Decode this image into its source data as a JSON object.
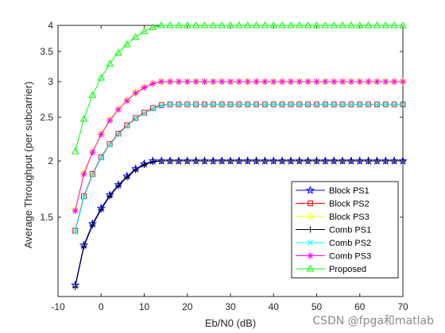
{
  "chart_data": {
    "type": "line",
    "title": "",
    "xlabel": "Eb/N0 (dB)",
    "ylabel": "Average Throughput (per subcarrier)",
    "xlim": [
      -10,
      70
    ],
    "ylim": [
      1.0,
      4.0
    ],
    "yscale": "log",
    "xticks": [
      -10,
      0,
      10,
      20,
      30,
      40,
      50,
      60,
      70
    ],
    "yticks": [
      1.5,
      2,
      2.5,
      3,
      3.5,
      4
    ],
    "ytick_labels": [
      "1.5",
      "2",
      "2.5",
      "3",
      "3.5",
      "4"
    ],
    "grid": false,
    "legend_position": "bottom-right",
    "x": [
      -6,
      -4,
      -2,
      0,
      2,
      4,
      6,
      8,
      10,
      12,
      14,
      16,
      18,
      20,
      22,
      24,
      26,
      28,
      30,
      32,
      34,
      36,
      38,
      40,
      42,
      44,
      46,
      48,
      50,
      52,
      54,
      56,
      58,
      60,
      62,
      64,
      66,
      68,
      70
    ],
    "series": [
      {
        "name": "Block PS1",
        "color": "#0000ff",
        "marker": "star",
        "values": [
          1.06,
          1.3,
          1.45,
          1.57,
          1.68,
          1.77,
          1.85,
          1.92,
          1.97,
          2.0,
          2.0,
          2.0,
          2.0,
          2.0,
          2.0,
          2.0,
          2.0,
          2.0,
          2.0,
          2.0,
          2.0,
          2.0,
          2.0,
          2.0,
          2.0,
          2.0,
          2.0,
          2.0,
          2.0,
          2.0,
          2.0,
          2.0,
          2.0,
          2.0,
          2.0,
          2.0,
          2.0,
          2.0,
          2.0
        ]
      },
      {
        "name": "Block PS2",
        "color": "#ff0000",
        "marker": "square",
        "values": [
          1.4,
          1.67,
          1.87,
          2.04,
          2.18,
          2.3,
          2.4,
          2.49,
          2.56,
          2.62,
          2.66,
          2.67,
          2.67,
          2.67,
          2.67,
          2.67,
          2.67,
          2.67,
          2.67,
          2.67,
          2.67,
          2.67,
          2.67,
          2.67,
          2.67,
          2.67,
          2.67,
          2.67,
          2.67,
          2.67,
          2.67,
          2.67,
          2.67,
          2.67,
          2.67,
          2.67,
          2.67,
          2.67,
          2.67
        ]
      },
      {
        "name": "Block PS3",
        "color": "#ffff00",
        "marker": "diamond",
        "values": [
          1.56,
          1.88,
          2.1,
          2.3,
          2.47,
          2.61,
          2.73,
          2.84,
          2.92,
          2.98,
          3.0,
          3.0,
          3.0,
          3.0,
          3.0,
          3.0,
          3.0,
          3.0,
          3.0,
          3.0,
          3.0,
          3.0,
          3.0,
          3.0,
          3.0,
          3.0,
          3.0,
          3.0,
          3.0,
          3.0,
          3.0,
          3.0,
          3.0,
          3.0,
          3.0,
          3.0,
          3.0,
          3.0,
          3.0
        ]
      },
      {
        "name": "Comb PS1",
        "color": "#000000",
        "marker": "plus",
        "values": [
          1.05,
          1.29,
          1.44,
          1.56,
          1.67,
          1.76,
          1.84,
          1.91,
          1.96,
          1.99,
          2.0,
          2.0,
          2.0,
          2.0,
          2.0,
          2.0,
          2.0,
          2.0,
          2.0,
          2.0,
          2.0,
          2.0,
          2.0,
          2.0,
          2.0,
          2.0,
          2.0,
          2.0,
          2.0,
          2.0,
          2.0,
          2.0,
          2.0,
          2.0,
          2.0,
          2.0,
          2.0,
          2.0,
          2.0
        ]
      },
      {
        "name": "Comb PS2",
        "color": "#00ffff",
        "marker": "x",
        "values": [
          1.39,
          1.66,
          1.86,
          2.03,
          2.17,
          2.29,
          2.39,
          2.48,
          2.55,
          2.61,
          2.65,
          2.67,
          2.67,
          2.67,
          2.67,
          2.67,
          2.67,
          2.67,
          2.67,
          2.67,
          2.67,
          2.67,
          2.67,
          2.67,
          2.67,
          2.67,
          2.67,
          2.67,
          2.67,
          2.67,
          2.67,
          2.67,
          2.67,
          2.67,
          2.67,
          2.67,
          2.67,
          2.67,
          2.67
        ]
      },
      {
        "name": "Comb PS3",
        "color": "#ff00ff",
        "marker": "asterisk",
        "values": [
          1.55,
          1.87,
          2.09,
          2.29,
          2.46,
          2.6,
          2.72,
          2.83,
          2.91,
          2.97,
          3.0,
          3.0,
          3.0,
          3.0,
          3.0,
          3.0,
          3.0,
          3.0,
          3.0,
          3.0,
          3.0,
          3.0,
          3.0,
          3.0,
          3.0,
          3.0,
          3.0,
          3.0,
          3.0,
          3.0,
          3.0,
          3.0,
          3.0,
          3.0,
          3.0,
          3.0,
          3.0,
          3.0,
          3.0
        ]
      },
      {
        "name": "Proposed",
        "color": "#00ff00",
        "marker": "triangle",
        "values": [
          2.1,
          2.48,
          2.8,
          3.06,
          3.29,
          3.48,
          3.63,
          3.77,
          3.88,
          3.96,
          4.0,
          4.0,
          4.0,
          4.0,
          4.0,
          4.0,
          4.0,
          4.0,
          4.0,
          4.0,
          4.0,
          4.0,
          4.0,
          4.0,
          4.0,
          4.0,
          4.0,
          4.0,
          4.0,
          4.0,
          4.0,
          4.0,
          4.0,
          4.0,
          4.0,
          4.0,
          4.0,
          4.0,
          4.0
        ]
      }
    ]
  },
  "watermark": "CSDN @fpga和matlab"
}
